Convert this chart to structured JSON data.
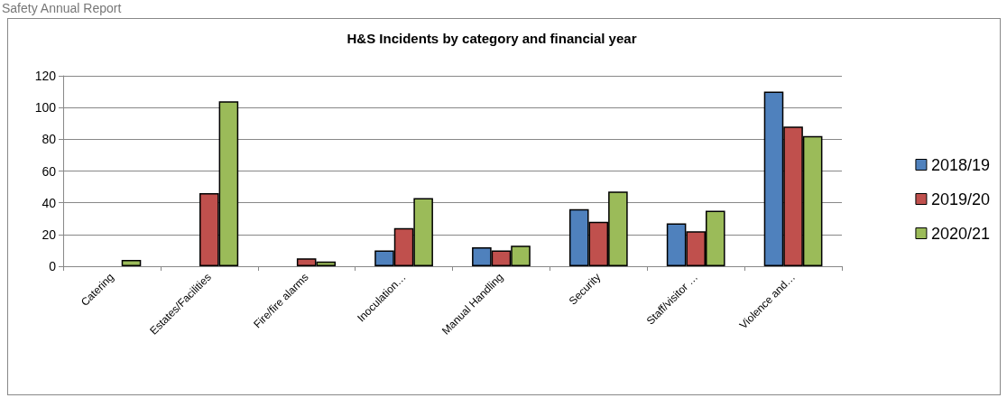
{
  "chart_data": {
    "type": "bar",
    "title": "H&S Incidents by category and financial year",
    "annotations": [
      "Safety Annual Report"
    ],
    "categories": [
      "Catering",
      "Estates/Facilities",
      "Fire/fire alarms",
      "Inoculation…",
      "Manual Handling",
      "Security",
      "Staff/visitor …",
      "Violence and…"
    ],
    "series": [
      {
        "name": "2018/19",
        "color": "#4f81bd",
        "values": [
          null,
          null,
          null,
          10,
          12,
          36,
          27,
          110
        ]
      },
      {
        "name": "2019/20",
        "color": "#c0504d",
        "values": [
          null,
          46,
          5,
          24,
          10,
          28,
          22,
          88
        ]
      },
      {
        "name": "2020/21",
        "color": "#9bbb59",
        "values": [
          4,
          104,
          3,
          43,
          13,
          47,
          35,
          82
        ]
      }
    ],
    "ylim": [
      0,
      120
    ],
    "yticks": [
      0,
      20,
      40,
      60,
      80,
      100,
      120
    ],
    "grid": "y",
    "legend": "right"
  }
}
